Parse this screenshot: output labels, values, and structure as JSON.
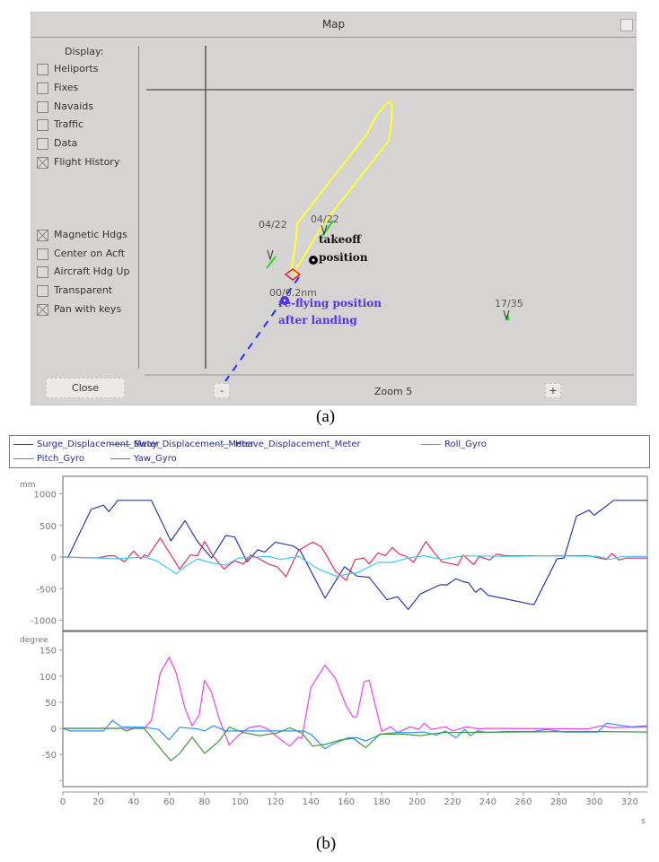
{
  "map_window": {
    "title": "Map",
    "display_heading": "Display:",
    "options": [
      {
        "label": "Heliports",
        "checked": false
      },
      {
        "label": "Fixes",
        "checked": false
      },
      {
        "label": "Navaids",
        "checked": false
      },
      {
        "label": "Traffic",
        "checked": false
      },
      {
        "label": "Data",
        "checked": false
      },
      {
        "label": "Flight History",
        "checked": true
      },
      {
        "label": "Magnetic Hdgs",
        "checked": true
      },
      {
        "label": "Center on Acft",
        "checked": false
      },
      {
        "label": "Aircraft Hdg Up",
        "checked": false
      },
      {
        "label": "Transparent",
        "checked": false
      },
      {
        "label": "Pan with keys",
        "checked": true
      }
    ],
    "close_label": "Close",
    "zoom_out_label": "-",
    "zoom_in_label": "+",
    "zoom_text": "Zoom 5",
    "runway_labels": [
      "04/22",
      "04/22",
      "17/35"
    ],
    "range_label": "00/0.2nm",
    "annotations": {
      "takeoff_line1": "takeoff",
      "takeoff_line2": "position",
      "refly_line1": "re-flying position",
      "refly_line2": "after landing"
    },
    "colors": {
      "flight_history": "#ffff33",
      "runway": "#22dd22",
      "refly_path": "#2233ee",
      "refly_text": "#5533dd",
      "marker": "#ee2222"
    }
  },
  "captions": {
    "a": "(a)",
    "b": "(b)"
  },
  "chart_data": [
    {
      "type": "line",
      "ylabel": "mm",
      "xlim": [
        0,
        330
      ],
      "ylim": [
        -1200,
        1250
      ],
      "yticks": [
        1000,
        500,
        0,
        -500,
        -1000
      ],
      "series": [
        {
          "name": "Surge_Displacement_Meter",
          "color": "#2a3aa8",
          "points": [
            [
              0,
              0
            ],
            [
              3,
              0
            ],
            [
              16,
              755
            ],
            [
              23,
              820
            ],
            [
              26,
              717
            ],
            [
              31,
              896
            ],
            [
              50,
              896
            ],
            [
              61,
              255
            ],
            [
              69,
              575
            ],
            [
              76,
              245
            ],
            [
              84,
              -15
            ],
            [
              92,
              340
            ],
            [
              97,
              316
            ],
            [
              104,
              -75
            ],
            [
              110,
              113
            ],
            [
              114,
              80
            ],
            [
              120,
              236
            ],
            [
              130,
              175
            ],
            [
              134,
              104
            ],
            [
              148,
              -650
            ],
            [
              159,
              -155
            ],
            [
              166,
              -300
            ],
            [
              173,
              -320
            ],
            [
              183,
              -675
            ],
            [
              189,
              -627
            ],
            [
              195,
              -830
            ],
            [
              202,
              -580
            ],
            [
              213,
              -440
            ],
            [
              217,
              -440
            ],
            [
              222,
              -345
            ],
            [
              226,
              -390
            ],
            [
              229,
              -405
            ],
            [
              233,
              -557
            ],
            [
              236,
              -495
            ],
            [
              240,
              -604
            ],
            [
              266,
              -755
            ],
            [
              279,
              -28
            ],
            [
              283,
              -15
            ],
            [
              290,
              646
            ],
            [
              297,
              740
            ],
            [
              300,
              660
            ],
            [
              311,
              896
            ],
            [
              330,
              896
            ]
          ]
        },
        {
          "name": "Sway_Displacement_Meter",
          "color": "#e0305a",
          "points": [
            [
              0,
              0
            ],
            [
              19,
              -15
            ],
            [
              26,
              20
            ],
            [
              29,
              20
            ],
            [
              35,
              -75
            ],
            [
              40,
              95
            ],
            [
              44,
              -28
            ],
            [
              46,
              33
            ],
            [
              48,
              10
            ],
            [
              55,
              300
            ],
            [
              66,
              -190
            ],
            [
              72,
              33
            ],
            [
              76,
              20
            ],
            [
              80,
              245
            ],
            [
              85,
              10
            ],
            [
              91,
              -190
            ],
            [
              97,
              -60
            ],
            [
              102,
              -110
            ],
            [
              106,
              33
            ],
            [
              110,
              -15
            ],
            [
              116,
              -110
            ],
            [
              121,
              -155
            ],
            [
              126,
              -310
            ],
            [
              133,
              104
            ],
            [
              141,
              236
            ],
            [
              146,
              160
            ],
            [
              154,
              -225
            ],
            [
              160,
              -370
            ],
            [
              165,
              -40
            ],
            [
              170,
              -15
            ],
            [
              173,
              -110
            ],
            [
              178,
              66
            ],
            [
              182,
              20
            ],
            [
              186,
              150
            ],
            [
              190,
              47
            ],
            [
              194,
              10
            ],
            [
              198,
              -85
            ],
            [
              205,
              245
            ],
            [
              210,
              57
            ],
            [
              214,
              -75
            ],
            [
              220,
              -110
            ],
            [
              223,
              -130
            ],
            [
              226,
              33
            ],
            [
              232,
              -120
            ],
            [
              235,
              10
            ],
            [
              241,
              -47
            ],
            [
              245,
              47
            ],
            [
              250,
              20
            ],
            [
              297,
              20
            ],
            [
              307,
              -38
            ],
            [
              310,
              57
            ],
            [
              314,
              -47
            ],
            [
              318,
              -15
            ],
            [
              330,
              -15
            ]
          ]
        },
        {
          "name": "Heave_Displacement_Meter",
          "color": "#40c8f0",
          "points": [
            [
              0,
              0
            ],
            [
              21,
              -15
            ],
            [
              30,
              -28
            ],
            [
              46,
              0
            ],
            [
              53,
              -60
            ],
            [
              64,
              -265
            ],
            [
              69,
              -155
            ],
            [
              76,
              -28
            ],
            [
              83,
              -85
            ],
            [
              92,
              -130
            ],
            [
              99,
              -15
            ],
            [
              116,
              10
            ],
            [
              123,
              -38
            ],
            [
              133,
              10
            ],
            [
              145,
              -200
            ],
            [
              154,
              -300
            ],
            [
              166,
              -250
            ],
            [
              178,
              -85
            ],
            [
              186,
              -85
            ],
            [
              195,
              -15
            ],
            [
              204,
              20
            ],
            [
              214,
              -38
            ],
            [
              226,
              20
            ],
            [
              250,
              10
            ],
            [
              273,
              20
            ],
            [
              302,
              10
            ],
            [
              309,
              -38
            ],
            [
              316,
              10
            ],
            [
              330,
              10
            ]
          ]
        }
      ]
    },
    {
      "type": "line",
      "ylabel": "degree",
      "xlabel": "s",
      "xlim": [
        0,
        330
      ],
      "ylim": [
        -110,
        185
      ],
      "xticks": [
        0,
        20,
        40,
        60,
        80,
        100,
        120,
        140,
        160,
        180,
        200,
        220,
        240,
        260,
        280,
        300,
        320
      ],
      "yticks": [
        150,
        100,
        50,
        0,
        -50
      ],
      "series": [
        {
          "name": "Roll_Gyro",
          "color": "#f040f0",
          "points": [
            [
              0,
              0
            ],
            [
              46,
              0
            ],
            [
              50,
              15
            ],
            [
              55,
              106
            ],
            [
              60,
              136
            ],
            [
              64,
              106
            ],
            [
              69,
              38
            ],
            [
              73,
              5
            ],
            [
              77,
              26
            ],
            [
              80,
              92
            ],
            [
              84,
              69
            ],
            [
              88,
              21
            ],
            [
              94,
              -32
            ],
            [
              99,
              -14
            ],
            [
              105,
              1
            ],
            [
              111,
              5
            ],
            [
              116,
              -2
            ],
            [
              122,
              -19
            ],
            [
              128,
              -34
            ],
            [
              133,
              -17
            ],
            [
              135,
              -19
            ],
            [
              140,
              78
            ],
            [
              148,
              121
            ],
            [
              154,
              95
            ],
            [
              160,
              43
            ],
            [
              164,
              21
            ],
            [
              166,
              22
            ],
            [
              170,
              89
            ],
            [
              173,
              92
            ],
            [
              180,
              -6
            ],
            [
              185,
              3
            ],
            [
              189,
              -8
            ],
            [
              196,
              3
            ],
            [
              201,
              -2
            ],
            [
              204,
              10
            ],
            [
              208,
              -2
            ],
            [
              216,
              3
            ],
            [
              220,
              -5
            ],
            [
              228,
              3
            ],
            [
              235,
              -1
            ],
            [
              240,
              0
            ],
            [
              297,
              -1
            ],
            [
              304,
              5
            ],
            [
              311,
              1
            ],
            [
              330,
              3
            ]
          ]
        },
        {
          "name": "Pitch_Gyro",
          "color": "#3090f0",
          "points": [
            [
              0,
              0
            ],
            [
              4,
              -5
            ],
            [
              23,
              -5
            ],
            [
              28,
              15
            ],
            [
              33,
              3
            ],
            [
              46,
              2
            ],
            [
              54,
              -2
            ],
            [
              60,
              -22
            ],
            [
              66,
              2
            ],
            [
              76,
              -1
            ],
            [
              80,
              -5
            ],
            [
              85,
              5
            ],
            [
              92,
              -5
            ],
            [
              136,
              -5
            ],
            [
              140,
              -11
            ],
            [
              148,
              -39
            ],
            [
              152,
              -31
            ],
            [
              161,
              -18
            ],
            [
              166,
              -18
            ],
            [
              171,
              -24
            ],
            [
              180,
              -11
            ],
            [
              188,
              -8
            ],
            [
              197,
              -8
            ],
            [
              204,
              -7
            ],
            [
              211,
              -13
            ],
            [
              216,
              -5
            ],
            [
              222,
              -18
            ],
            [
              227,
              -2
            ],
            [
              230,
              -14
            ],
            [
              234,
              -5
            ],
            [
              240,
              -8
            ],
            [
              250,
              -6
            ],
            [
              266,
              -6
            ],
            [
              273,
              -2
            ],
            [
              283,
              -7
            ],
            [
              302,
              -7
            ],
            [
              307,
              10
            ],
            [
              314,
              6
            ],
            [
              321,
              3
            ],
            [
              330,
              5
            ]
          ]
        },
        {
          "name": "Yaw_Gyro",
          "color": "#3a9a3a",
          "points": [
            [
              0,
              0
            ],
            [
              33,
              0
            ],
            [
              36,
              -5
            ],
            [
              40,
              0
            ],
            [
              46,
              0
            ],
            [
              54,
              -34
            ],
            [
              61,
              -62
            ],
            [
              66,
              -48
            ],
            [
              73,
              -17
            ],
            [
              80,
              -48
            ],
            [
              88,
              -25
            ],
            [
              94,
              2
            ],
            [
              102,
              -8
            ],
            [
              111,
              -14
            ],
            [
              121,
              -9
            ],
            [
              128,
              1
            ],
            [
              135,
              -9
            ],
            [
              141,
              -34
            ],
            [
              148,
              -31
            ],
            [
              157,
              -22
            ],
            [
              164,
              -19
            ],
            [
              171,
              -37
            ],
            [
              179,
              -11
            ],
            [
              192,
              -11
            ],
            [
              202,
              -14
            ],
            [
              214,
              -8
            ],
            [
              250,
              -7
            ],
            [
              297,
              -6
            ],
            [
              330,
              -7
            ]
          ]
        }
      ]
    }
  ]
}
